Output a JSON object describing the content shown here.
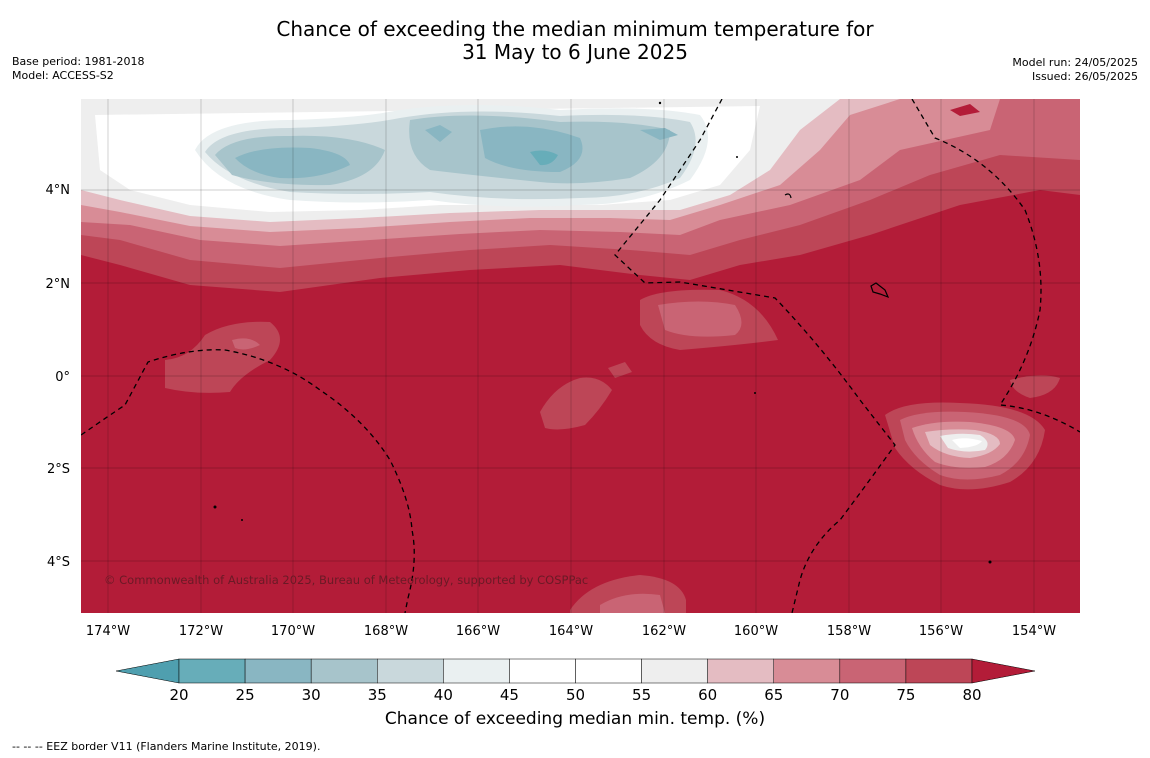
{
  "header": {
    "title_line1": "Chance of exceeding the median minimum temperature for",
    "title_line2": "31 May to 6 June 2025",
    "base_period": "Base period: 1981-2018",
    "model": "Model: ACCESS-S2",
    "model_run": "Model run: 24/05/2025",
    "issued": "Issued: 26/05/2025"
  },
  "map": {
    "lat_labels": [
      "4°N",
      "2°N",
      "0°",
      "2°S",
      "4°S"
    ],
    "lon_labels": [
      "174°W",
      "172°W",
      "170°W",
      "168°W",
      "166°W",
      "164°W",
      "162°W",
      "160°W",
      "158°W",
      "156°W",
      "154°W"
    ],
    "copyright": "© Commonwealth of Australia 2025, Bureau of Meteorology, supported by COSPPac"
  },
  "colorbar": {
    "ticks": [
      "20",
      "25",
      "30",
      "35",
      "40",
      "45",
      "50",
      "55",
      "60",
      "65",
      "70",
      "75",
      "80"
    ],
    "colors": [
      "#67adb9",
      "#89b6c2",
      "#a7c4cb",
      "#c9d8dc",
      "#eaf0f1",
      "#ffffff",
      "#ffffff",
      "#eeeeee",
      "#e4bcc2",
      "#d88c96",
      "#c96474",
      "#bd4657"
    ],
    "below_color": "#4f9faf",
    "above_color": "#b31c38",
    "label": "Chance of exceeding median min. temp. (%)"
  },
  "footnote": "--  --  -- EEZ border V11 (Flanders Marine Institute, 2019)."
}
